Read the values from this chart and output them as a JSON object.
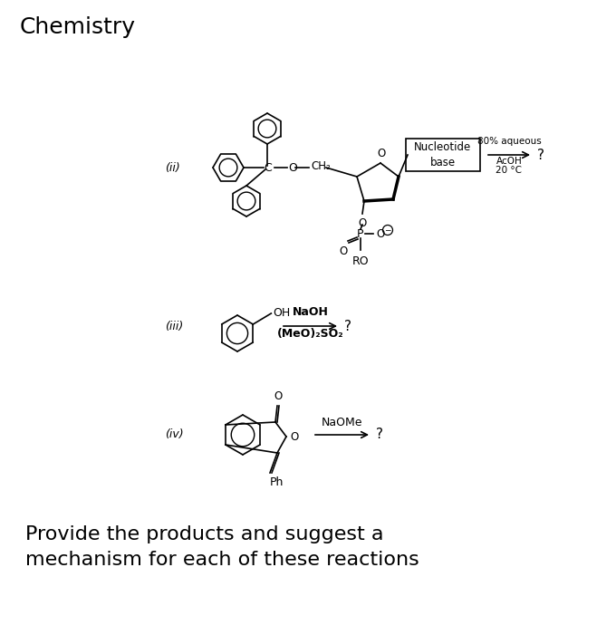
{
  "title": "Chemistry",
  "title_fontsize": 18,
  "background_color": "#ffffff",
  "text_color": "#000000",
  "label_ii": "(ii)",
  "label_iii": "(iii)",
  "label_iv": "(iv)",
  "reagents_ii_line1": "80% aqueous",
  "reagents_ii_line2": "AcOH",
  "reagents_ii_line3": "20 °C",
  "reagents_iii_line1": "NaOH",
  "reagents_iii_line2": "(MeO)₂SO₂",
  "reagents_iv": "NaOMe",
  "question_mark": "?",
  "nucleotide_box_text": "Nucleotide\nbase",
  "ch2_label": "CH₂",
  "ro_label": "RO",
  "oh_label": "OH",
  "ph_label": "Ph",
  "footer_line1": "Provide the products and suggest a",
  "footer_line2": "mechanism for each of these reactions",
  "footer_fontsize": 16
}
